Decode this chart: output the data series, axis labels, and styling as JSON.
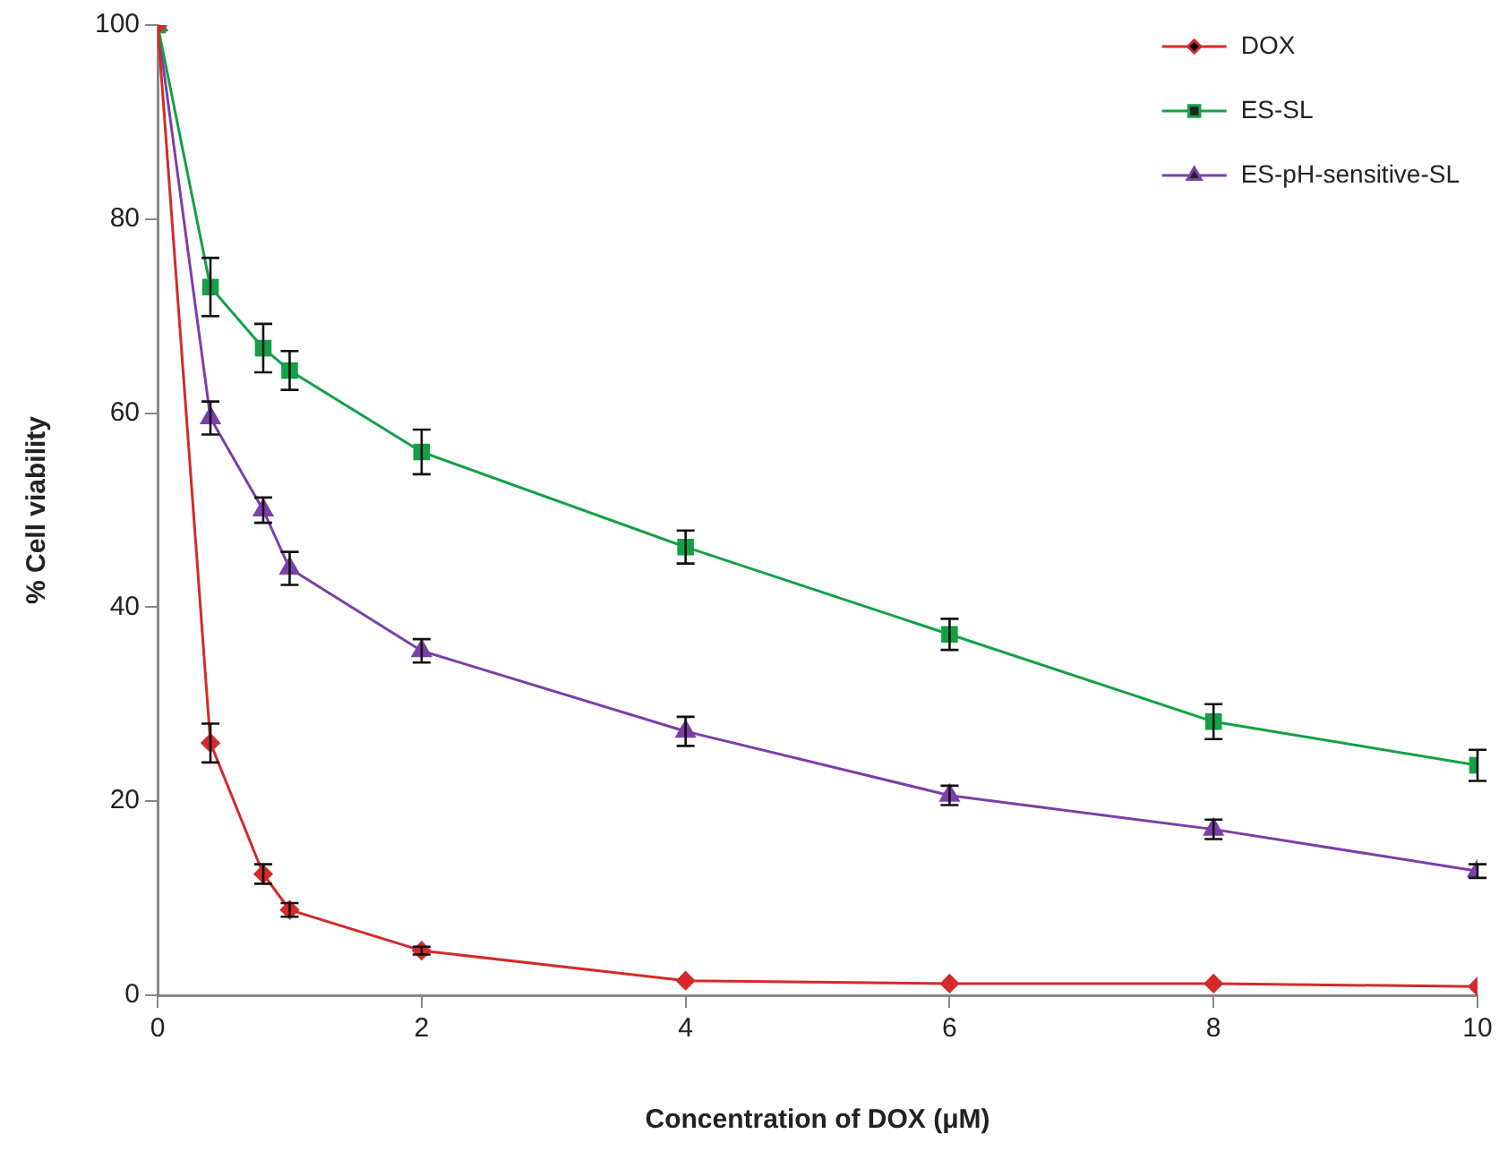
{
  "chart_data": {
    "type": "line",
    "xlabel": "Concentration of DOX (μM)",
    "ylabel": "% Cell viability",
    "x": [
      0,
      0.4,
      0.8,
      1,
      2,
      4,
      6,
      8,
      10
    ],
    "xlim": [
      0,
      10
    ],
    "xticks": [
      0,
      2,
      4,
      6,
      8,
      10
    ],
    "ylim": [
      0,
      100
    ],
    "yticks": [
      0,
      20,
      40,
      60,
      80,
      100
    ],
    "grid": false,
    "legend": "top right",
    "line_style": "solid",
    "series": [
      {
        "name": "DOX",
        "color": "#d42a2a",
        "marker": "diamond",
        "values": [
          100,
          26,
          12.5,
          8.8,
          4.6,
          1.5,
          1.2,
          1.2,
          0.9
        ],
        "errors": [
          null,
          2,
          1,
          0.7,
          0.4,
          null,
          null,
          null,
          null
        ]
      },
      {
        "name": "ES-SL",
        "color": "#13a046",
        "marker": "square",
        "values": [
          100,
          73,
          66.7,
          64.4,
          56,
          46.2,
          37.2,
          28.2,
          23.7
        ],
        "errors": [
          null,
          3,
          2.5,
          2,
          2.3,
          1.7,
          1.6,
          1.8,
          1.6
        ]
      },
      {
        "name": "ES-pH-sensitive-SL",
        "color": "#7a3fa8",
        "marker": "triangle",
        "values": [
          100,
          59.5,
          50,
          44,
          35.5,
          27.2,
          20.6,
          17.1,
          12.8
        ],
        "errors": [
          null,
          1.7,
          1.3,
          1.7,
          1.2,
          1.5,
          1,
          1,
          0.7
        ]
      }
    ]
  }
}
